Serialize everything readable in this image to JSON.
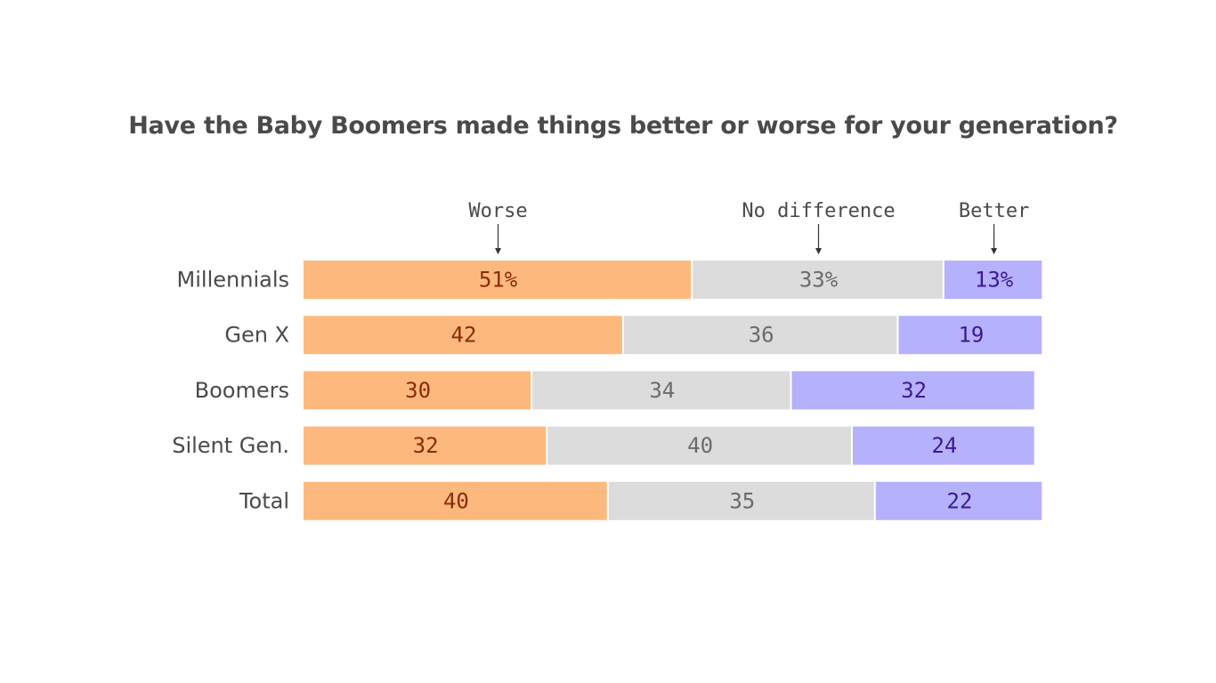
{
  "chart_data": {
    "type": "bar",
    "orientation": "horizontal",
    "stacked": true,
    "title": "Have the Baby Boomers made things better or worse for your generation?",
    "categories": [
      "Millennials",
      "Gen X",
      "Boomers",
      "Silent Gen.",
      "Total"
    ],
    "series": [
      {
        "name": "Worse",
        "color": "#fdb97d",
        "text_color": "#8b2a06",
        "values": [
          51,
          42,
          30,
          32,
          40
        ],
        "labels": [
          "51%",
          "42",
          "30",
          "32",
          "40"
        ]
      },
      {
        "name": "No difference",
        "color": "#dcdcdc",
        "text_color": "#6b6b6b",
        "values": [
          33,
          36,
          34,
          40,
          35
        ],
        "labels": [
          "33%",
          "36",
          "34",
          "40",
          "35"
        ]
      },
      {
        "name": "Better",
        "color": "#b6b1fc",
        "text_color": "#3a1a94",
        "values": [
          13,
          19,
          32,
          24,
          22
        ],
        "labels": [
          "13%",
          "19",
          "32",
          "24",
          "22"
        ]
      }
    ],
    "xlim": [
      0,
      100
    ],
    "grid": false,
    "legend": "top"
  }
}
